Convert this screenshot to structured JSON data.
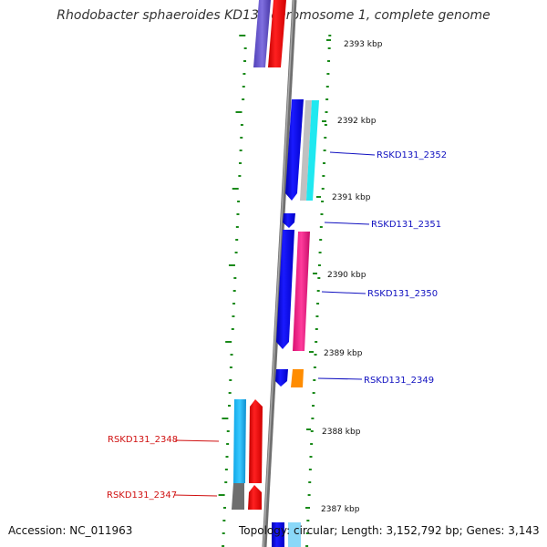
{
  "title": "Rhodobacter sphaeroides KD131 chromosome 1, complete genome",
  "footer": {
    "accession": "Accession: NC_011963",
    "topology": "Topology: circular; Length: 3,152,792 bp; Genes: 3,143"
  },
  "scale_labels": [
    "2393 kbp",
    "2392 kbp",
    "2391 kbp",
    "2390 kbp",
    "2389 kbp",
    "2388 kbp",
    "2387 kbp"
  ],
  "gene_labels": [
    {
      "text": "RSKD131_2352",
      "color": "#1010c0"
    },
    {
      "text": "RSKD131_2351",
      "color": "#1010c0"
    },
    {
      "text": "RSKD131_2350",
      "color": "#1010c0"
    },
    {
      "text": "RSKD131_2349",
      "color": "#1010c0"
    },
    {
      "text": "RSKD131_2348",
      "color": "#d01010"
    },
    {
      "text": "RSKD131_2347",
      "color": "#d01010"
    }
  ],
  "colors": {
    "backbone": "#808080",
    "tick": "#1a8a1a",
    "forward_label": "#1010c0",
    "reverse_label": "#d01010"
  }
}
